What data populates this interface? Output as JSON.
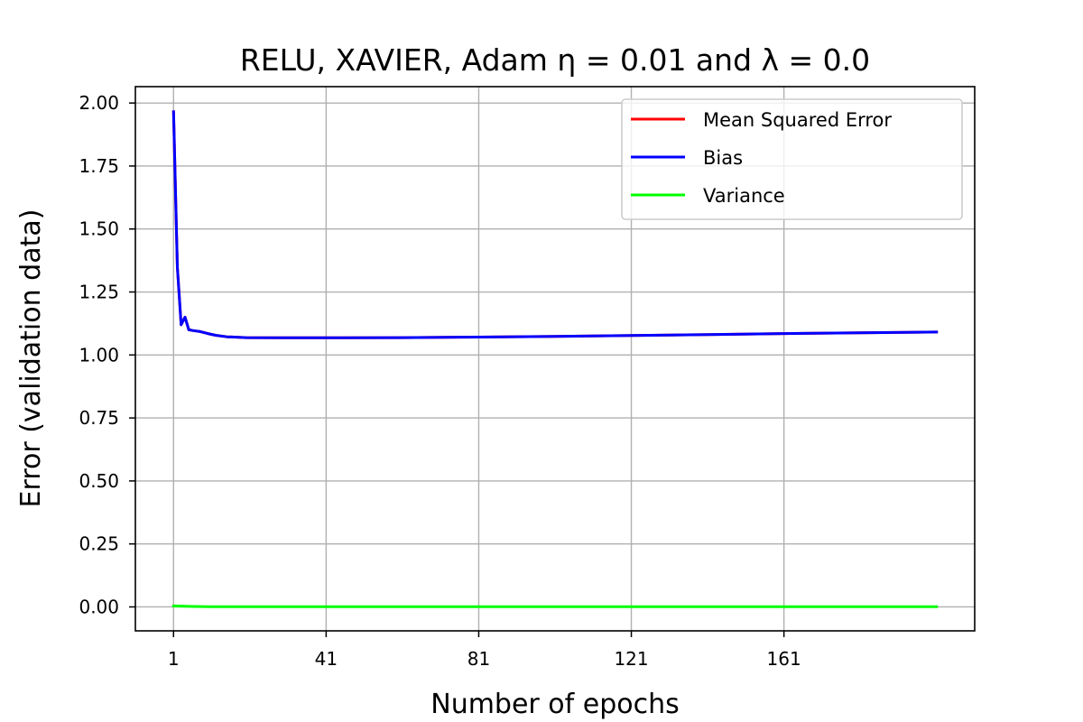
{
  "chart_data": {
    "type": "line",
    "title": "RELU, XAVIER, Adam η = 0.01 and λ = 0.0",
    "xlabel": "Number of epochs",
    "ylabel": "Error (validation data)",
    "xlim": [
      -9,
      211
    ],
    "ylim": [
      -0.095,
      2.065
    ],
    "xticks": [
      1,
      41,
      81,
      121,
      161
    ],
    "yticks": [
      0.0,
      0.25,
      0.5,
      0.75,
      1.0,
      1.25,
      1.5,
      1.75,
      2.0
    ],
    "ytick_labels": [
      "0.00",
      "0.25",
      "0.50",
      "0.75",
      "1.00",
      "1.25",
      "1.50",
      "1.75",
      "2.00"
    ],
    "grid": true,
    "legend_position": "top-right",
    "series": [
      {
        "name": "Mean Squared Error",
        "color": "#ff0000",
        "x": [
          1,
          2,
          3,
          4,
          5,
          6,
          7,
          8,
          10,
          12,
          15,
          20,
          30,
          41,
          61,
          81,
          101,
          121,
          141,
          161,
          181,
          201
        ],
        "y": [
          1.965,
          1.35,
          1.12,
          1.15,
          1.1,
          1.097,
          1.095,
          1.093,
          1.085,
          1.078,
          1.072,
          1.069,
          1.068,
          1.068,
          1.069,
          1.071,
          1.074,
          1.077,
          1.081,
          1.085,
          1.088,
          1.091
        ]
      },
      {
        "name": "Bias",
        "color": "#0000ff",
        "x": [
          1,
          2,
          3,
          4,
          5,
          6,
          7,
          8,
          10,
          12,
          15,
          20,
          30,
          41,
          61,
          81,
          101,
          121,
          141,
          161,
          181,
          201
        ],
        "y": [
          1.965,
          1.35,
          1.12,
          1.15,
          1.1,
          1.097,
          1.095,
          1.093,
          1.085,
          1.078,
          1.072,
          1.069,
          1.068,
          1.068,
          1.069,
          1.071,
          1.074,
          1.077,
          1.081,
          1.085,
          1.088,
          1.091
        ]
      },
      {
        "name": "Variance",
        "color": "#00ff00",
        "x": [
          1,
          5,
          10,
          41,
          81,
          121,
          161,
          201
        ],
        "y": [
          0.004,
          0.002,
          0.001,
          0.001,
          0.001,
          0.001,
          0.001,
          0.001
        ]
      }
    ]
  }
}
